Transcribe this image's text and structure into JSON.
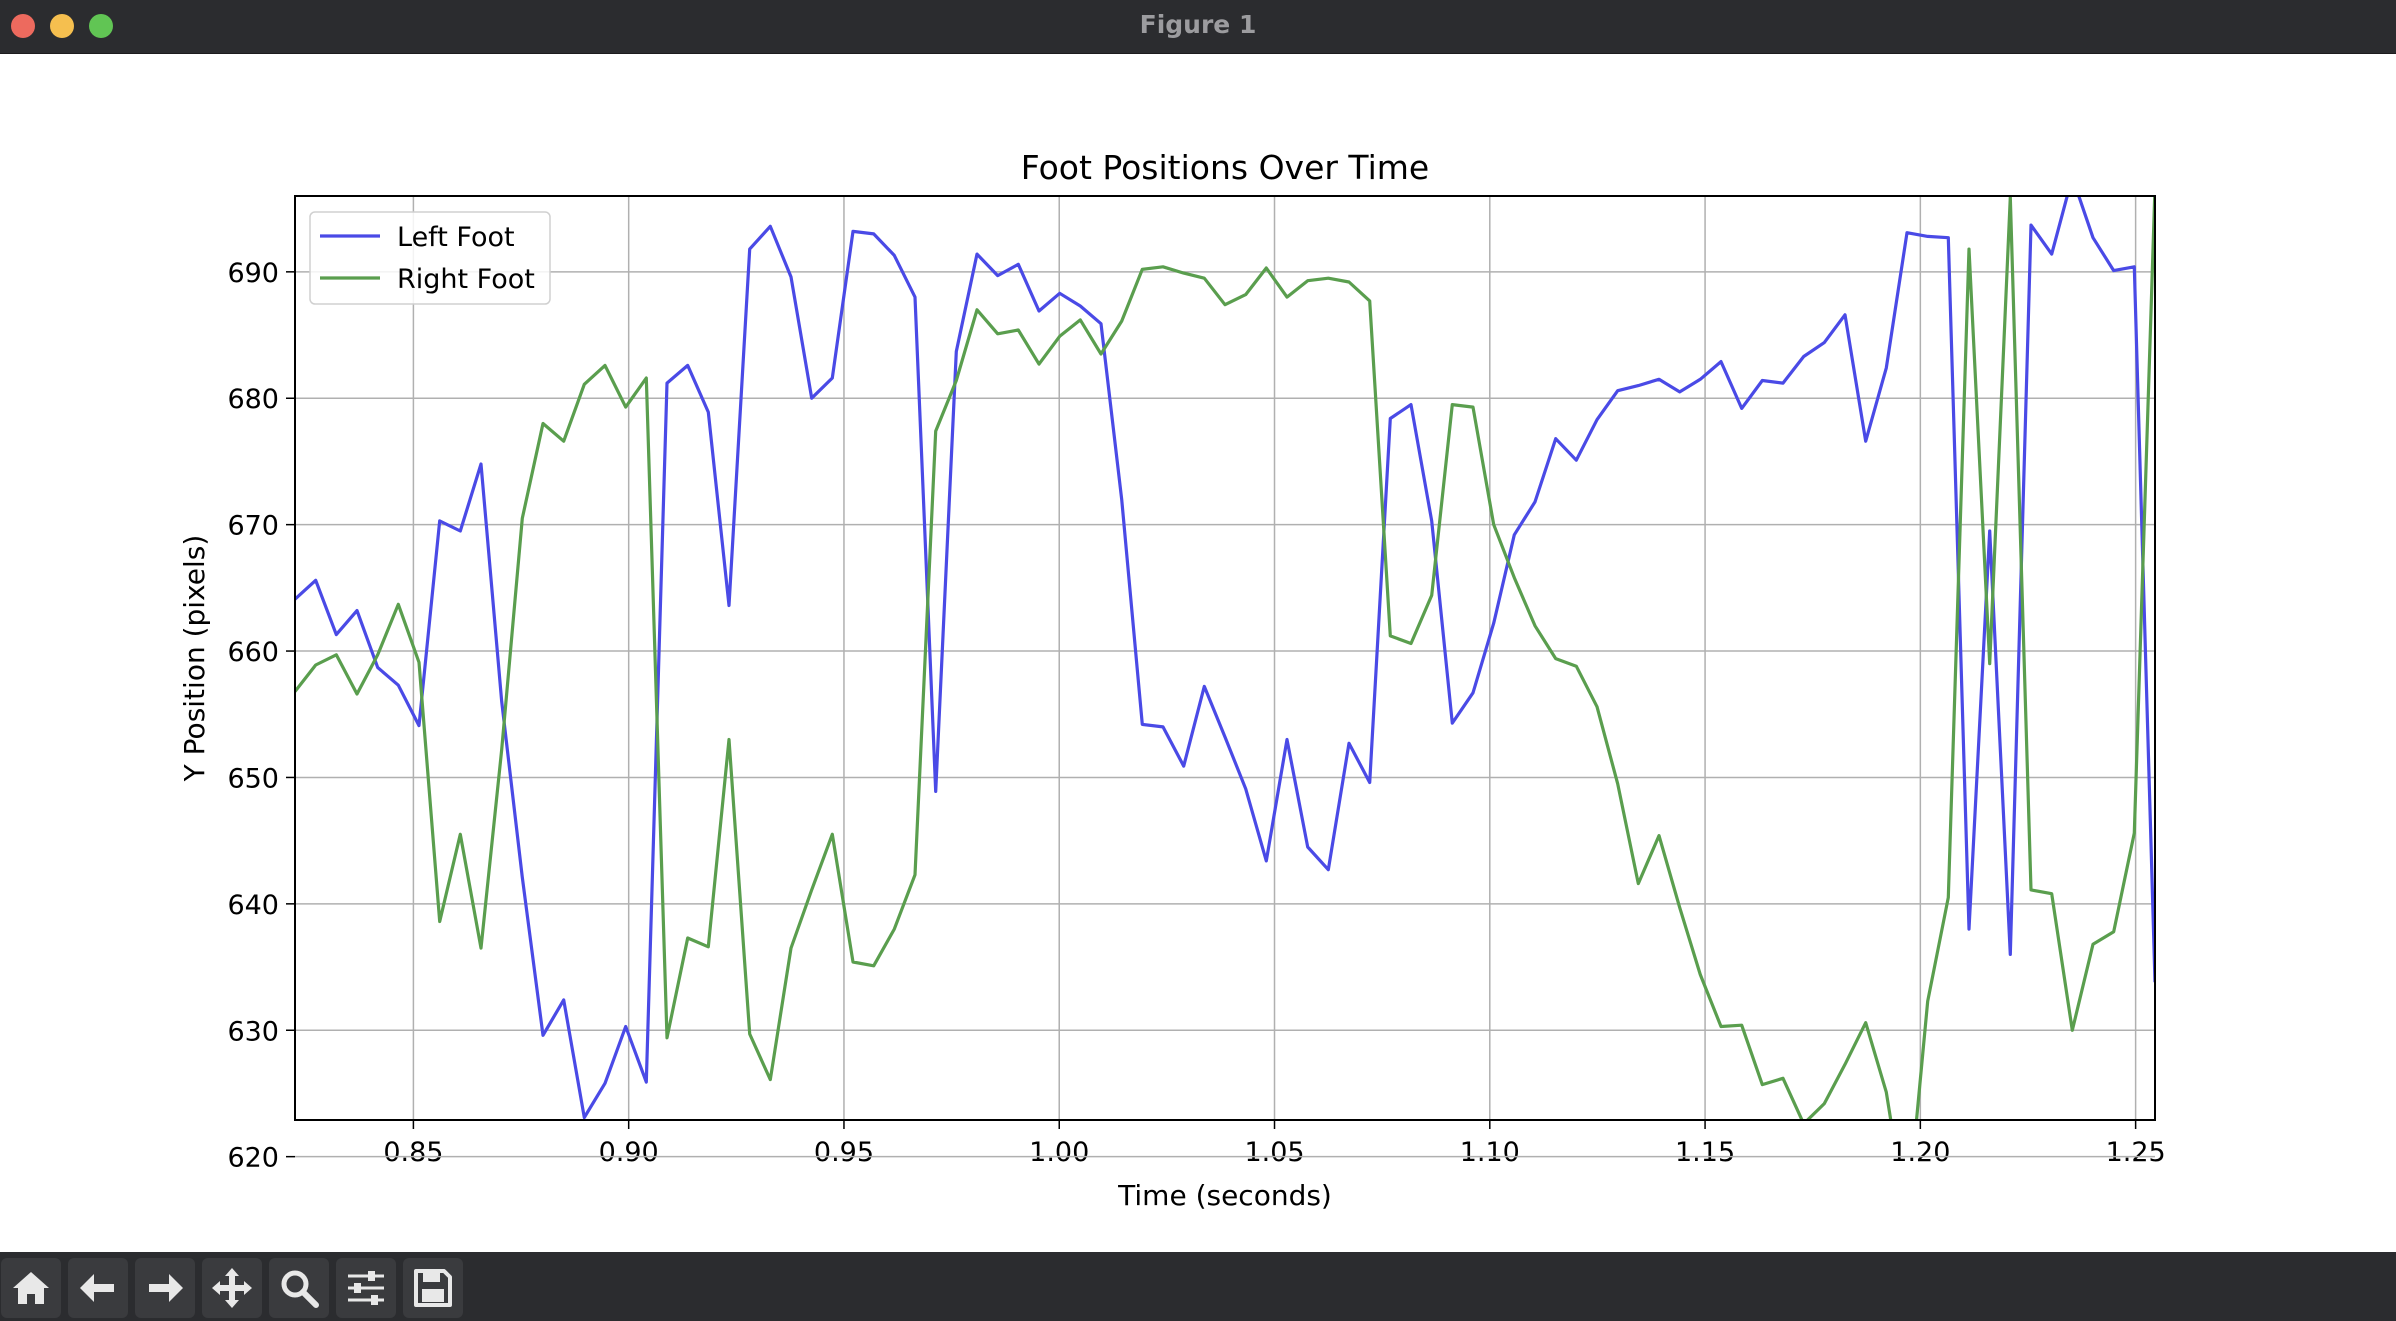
{
  "window": {
    "title": "Figure 1"
  },
  "toolbar": {
    "buttons": [
      "home-icon",
      "back-arrow-icon",
      "forward-arrow-icon",
      "pan-icon",
      "zoom-icon",
      "configure-subplots-icon",
      "save-icon"
    ]
  },
  "colors": {
    "left_foot": "#4a4ae6",
    "right_foot": "#5a9e4e",
    "grid": "#b0b0b0"
  },
  "chart_data": {
    "type": "line",
    "title": "Foot Positions Over Time",
    "xlabel": "Time (seconds)",
    "ylabel": "Y Position (pixels)",
    "xlim": [
      0.8225,
      1.2545
    ],
    "ylim": [
      622.9,
      696.0
    ],
    "xticks": [
      "0.85",
      "0.90",
      "0.95",
      "1.00",
      "1.05",
      "1.10",
      "1.15",
      "1.20",
      "1.25"
    ],
    "yticks": [
      "620",
      "630",
      "640",
      "650",
      "660",
      "670",
      "680",
      "690"
    ],
    "grid": true,
    "legend_position": "top-left",
    "series": [
      {
        "name": "Left Foot",
        "color": "#4a4ae6",
        "x": [
          0.8225,
          0.8273,
          0.8321,
          0.8369,
          0.8417,
          0.8465,
          0.8513,
          0.8561,
          0.8609,
          0.8657,
          0.8705,
          0.8753,
          0.8801,
          0.8849,
          0.8897,
          0.8945,
          0.8993,
          0.9041,
          0.9089,
          0.9137,
          0.9185,
          0.9233,
          0.9281,
          0.9329,
          0.9377,
          0.9425,
          0.9473,
          0.9521,
          0.9569,
          0.9617,
          0.9665,
          0.9713,
          0.9761,
          0.9809,
          0.9857,
          0.9905,
          0.9953,
          1.0001,
          1.0049,
          1.0097,
          1.0145,
          1.0193,
          1.0241,
          1.0289,
          1.0337,
          1.0385,
          1.0433,
          1.0481,
          1.0529,
          1.0577,
          1.0625,
          1.0673,
          1.0721,
          1.0769,
          1.0817,
          1.0865,
          1.0913,
          1.0961,
          1.1009,
          1.1057,
          1.1105,
          1.1153,
          1.1201,
          1.1249,
          1.1297,
          1.1345,
          1.1393,
          1.1441,
          1.1489,
          1.1537,
          1.1585,
          1.1633,
          1.1681,
          1.1729,
          1.1777,
          1.1825,
          1.1873,
          1.1921,
          1.1969,
          1.2017,
          1.2065,
          1.2113,
          1.2161,
          1.2209,
          1.2257,
          1.2305,
          1.2353,
          1.2401,
          1.2449,
          1.2497,
          1.2545
        ],
        "y": [
          664.1,
          665.6,
          661.3,
          663.2,
          658.7,
          657.3,
          654.1,
          670.3,
          669.5,
          674.8,
          656.0,
          642.1,
          629.6,
          632.4,
          623.1,
          625.8,
          630.3,
          625.9,
          681.2,
          682.6,
          678.9,
          663.6,
          691.8,
          693.6,
          689.6,
          680.0,
          681.6,
          693.2,
          693.0,
          691.3,
          688.0,
          648.9,
          683.7,
          691.4,
          689.7,
          690.6,
          686.9,
          688.3,
          687.3,
          685.9,
          672.0,
          654.2,
          654.0,
          650.9,
          657.2,
          653.2,
          649.1,
          643.4,
          653.0,
          644.5,
          642.7,
          652.7,
          649.6,
          678.4,
          679.5,
          670.3,
          654.3,
          656.7,
          662.2,
          669.2,
          671.8,
          676.8,
          675.1,
          678.3,
          680.6,
          681.0,
          681.5,
          680.5,
          681.5,
          682.9,
          679.2,
          681.4,
          681.2,
          683.3,
          684.4,
          686.6,
          676.6,
          682.4,
          693.1,
          692.8,
          692.7,
          638.0,
          669.5,
          636.0,
          693.7,
          691.4,
          697.5,
          692.7,
          690.1,
          690.4,
          633.8
        ]
      },
      {
        "name": "Right Foot",
        "color": "#5a9e4e",
        "x": [
          0.8225,
          0.8273,
          0.8321,
          0.8369,
          0.8417,
          0.8465,
          0.8513,
          0.8561,
          0.8609,
          0.8657,
          0.8705,
          0.8753,
          0.8801,
          0.8849,
          0.8897,
          0.8945,
          0.8993,
          0.9041,
          0.9089,
          0.9137,
          0.9185,
          0.9233,
          0.9281,
          0.9329,
          0.9377,
          0.9425,
          0.9473,
          0.9521,
          0.9569,
          0.9617,
          0.9665,
          0.9713,
          0.9761,
          0.9809,
          0.9857,
          0.9905,
          0.9953,
          1.0001,
          1.0049,
          1.0097,
          1.0145,
          1.0193,
          1.0241,
          1.0289,
          1.0337,
          1.0385,
          1.0433,
          1.0481,
          1.0529,
          1.0577,
          1.0625,
          1.0673,
          1.0721,
          1.0769,
          1.0817,
          1.0865,
          1.0913,
          1.0961,
          1.1009,
          1.1057,
          1.1105,
          1.1153,
          1.1201,
          1.1249,
          1.1297,
          1.1345,
          1.1393,
          1.1441,
          1.1489,
          1.1537,
          1.1585,
          1.1633,
          1.1681,
          1.1729,
          1.1777,
          1.1825,
          1.1873,
          1.1921,
          1.1969,
          1.2017,
          1.2065,
          1.2113,
          1.2161,
          1.2209,
          1.2257,
          1.2305,
          1.2353,
          1.2401,
          1.2449,
          1.2497,
          1.2545
        ],
        "y": [
          656.8,
          658.9,
          659.7,
          656.6,
          659.7,
          663.7,
          659.1,
          638.6,
          645.5,
          636.5,
          652.2,
          670.5,
          678.0,
          676.6,
          681.1,
          682.6,
          679.3,
          681.6,
          629.4,
          637.3,
          636.6,
          653.0,
          629.7,
          626.1,
          636.5,
          641.1,
          645.5,
          635.4,
          635.1,
          638.0,
          642.3,
          677.4,
          681.4,
          687.0,
          685.1,
          685.4,
          682.7,
          684.9,
          686.2,
          683.5,
          686.1,
          690.2,
          690.4,
          689.9,
          689.5,
          687.4,
          688.2,
          690.3,
          688.0,
          689.3,
          689.5,
          689.2,
          687.7,
          661.2,
          660.6,
          664.4,
          679.5,
          679.3,
          670.0,
          665.8,
          662.0,
          659.4,
          658.8,
          655.6,
          649.5,
          641.6,
          645.4,
          639.7,
          634.4,
          630.3,
          630.4,
          625.7,
          626.2,
          622.6,
          624.2,
          627.3,
          630.6,
          625.1,
          614.9,
          632.3,
          640.5,
          691.8,
          659.0,
          695.9,
          641.1,
          640.8,
          630.0,
          636.8,
          637.8,
          645.6,
          696.7
        ]
      }
    ]
  }
}
